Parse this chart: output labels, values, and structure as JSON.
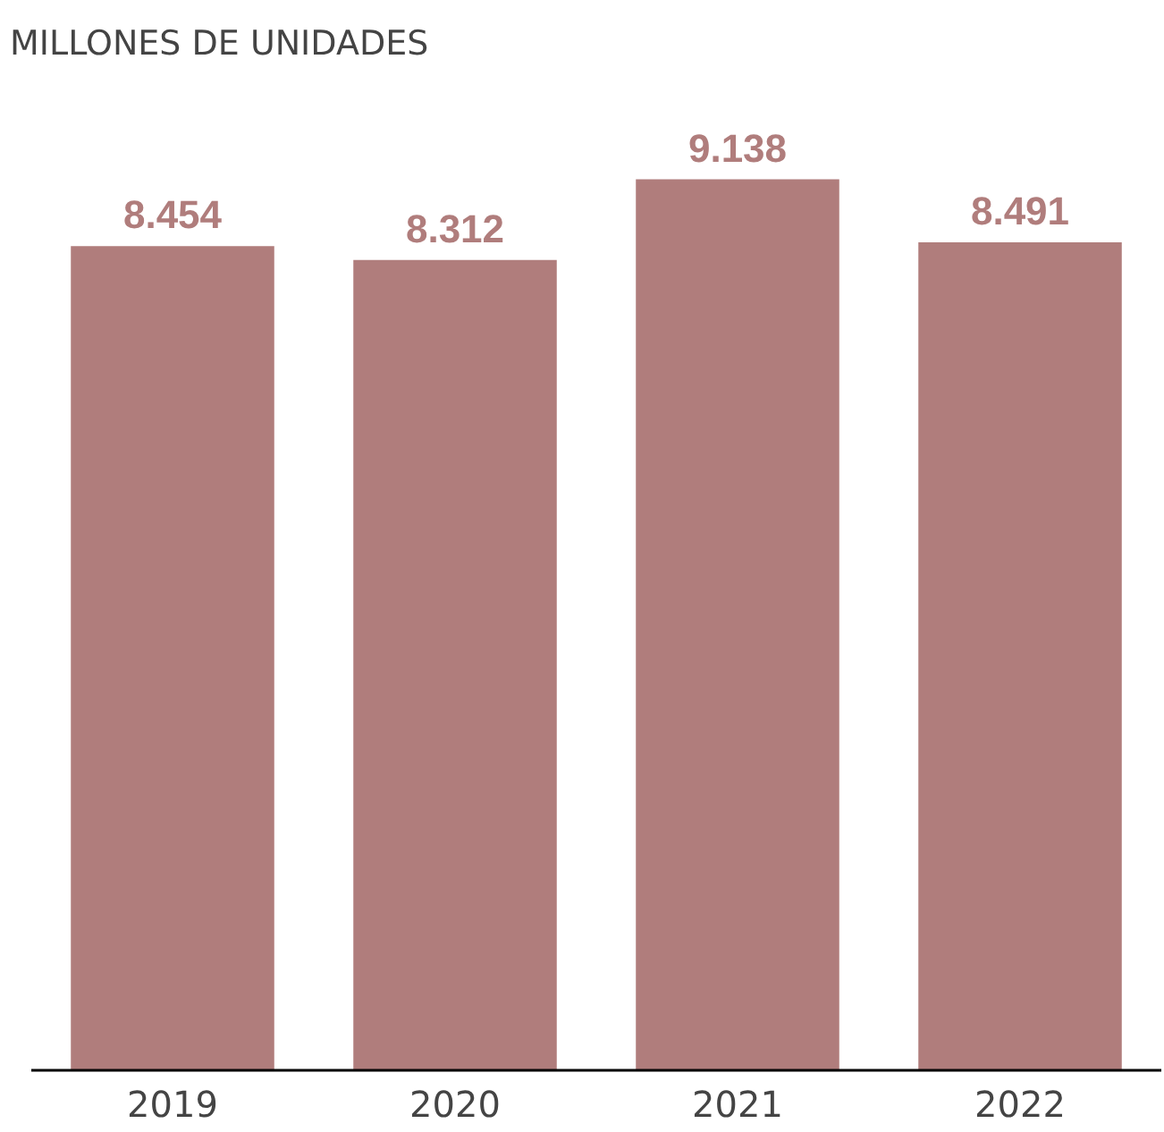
{
  "chart_data": {
    "type": "bar",
    "title": "MILLONES  DE UNIDADES",
    "categories": [
      "2019",
      "2020",
      "2021",
      "2022"
    ],
    "values": [
      8.454,
      8.312,
      9.138,
      8.491
    ],
    "color": "#b07d7c",
    "data_labels": true,
    "grid": false,
    "tick_labels": "x"
  }
}
